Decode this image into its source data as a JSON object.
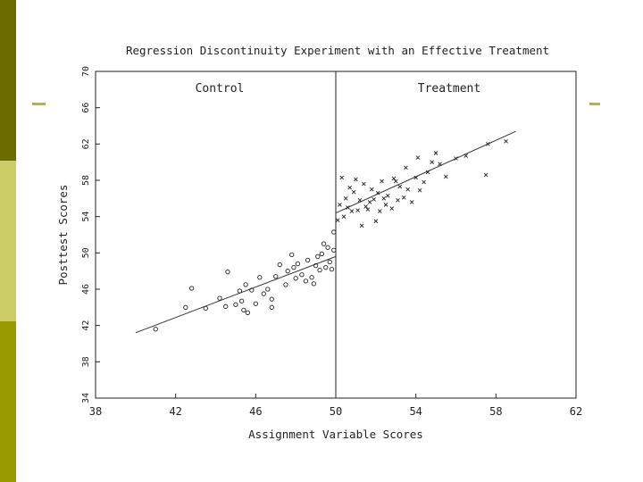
{
  "slide": {
    "strip_colors": [
      "#6b6b00",
      "#cccc66",
      "#999900"
    ],
    "accent_color": "#b5b53c"
  },
  "chart_data": {
    "type": "scatter",
    "title": "Regression Discontinuity Experiment with an Effective Treatment",
    "xlabel": "Assignment Variable Scores",
    "ylabel": "Posttest Scores",
    "xlim": [
      38,
      62
    ],
    "ylim": [
      34,
      70
    ],
    "xticks": [
      38,
      42,
      46,
      50,
      54,
      58,
      62
    ],
    "yticks": [
      34,
      38,
      42,
      46,
      50,
      54,
      58,
      62,
      66,
      70
    ],
    "cutoff": 50,
    "region_labels": {
      "control": "Control",
      "treatment": "Treatment"
    },
    "grid": false,
    "series": [
      {
        "name": "Control",
        "marker": "circle",
        "fit_line": [
          [
            40,
            41.2
          ],
          [
            50,
            49.6
          ]
        ],
        "points": [
          [
            41,
            41.6
          ],
          [
            42.5,
            44.0
          ],
          [
            42.8,
            46.1
          ],
          [
            43.5,
            43.9
          ],
          [
            44.2,
            45.0
          ],
          [
            44.5,
            44.1
          ],
          [
            44.6,
            47.9
          ],
          [
            45.0,
            44.3
          ],
          [
            45.2,
            45.8
          ],
          [
            45.4,
            43.7
          ],
          [
            45.5,
            46.5
          ],
          [
            45.6,
            43.4
          ],
          [
            45.8,
            45.9
          ],
          [
            46.0,
            44.4
          ],
          [
            46.2,
            47.3
          ],
          [
            46.4,
            45.5
          ],
          [
            46.6,
            46.0
          ],
          [
            46.8,
            44.9
          ],
          [
            47.0,
            47.4
          ],
          [
            47.2,
            48.7
          ],
          [
            47.5,
            46.5
          ],
          [
            47.6,
            48.0
          ],
          [
            47.8,
            49.8
          ],
          [
            48.0,
            47.2
          ],
          [
            48.1,
            48.8
          ],
          [
            48.3,
            47.6
          ],
          [
            48.5,
            46.9
          ],
          [
            48.6,
            49.2
          ],
          [
            48.8,
            47.3
          ],
          [
            49.0,
            48.6
          ],
          [
            49.1,
            49.6
          ],
          [
            49.2,
            48.1
          ],
          [
            49.3,
            49.9
          ],
          [
            49.4,
            51.0
          ],
          [
            49.5,
            48.4
          ],
          [
            49.6,
            50.6
          ],
          [
            49.7,
            49.0
          ],
          [
            49.8,
            48.2
          ],
          [
            49.9,
            50.3
          ],
          [
            49.9,
            52.3
          ],
          [
            46.8,
            44.0
          ],
          [
            45.3,
            44.7
          ],
          [
            47.9,
            48.4
          ],
          [
            48.9,
            46.6
          ]
        ]
      },
      {
        "name": "Treatment",
        "marker": "x",
        "fit_line": [
          [
            50,
            54.4
          ],
          [
            59,
            63.4
          ]
        ],
        "points": [
          [
            50.1,
            53.6
          ],
          [
            50.2,
            55.3
          ],
          [
            50.3,
            58.3
          ],
          [
            50.4,
            54.0
          ],
          [
            50.5,
            56.0
          ],
          [
            50.6,
            55.0
          ],
          [
            50.7,
            57.2
          ],
          [
            50.8,
            54.6
          ],
          [
            50.9,
            56.7
          ],
          [
            51.0,
            58.1
          ],
          [
            51.1,
            54.7
          ],
          [
            51.2,
            55.8
          ],
          [
            51.3,
            53.0
          ],
          [
            51.4,
            57.6
          ],
          [
            51.5,
            55.1
          ],
          [
            51.6,
            54.8
          ],
          [
            51.8,
            57.0
          ],
          [
            51.9,
            55.9
          ],
          [
            52.0,
            53.5
          ],
          [
            52.1,
            56.6
          ],
          [
            52.2,
            54.6
          ],
          [
            52.3,
            57.9
          ],
          [
            52.5,
            55.3
          ],
          [
            52.6,
            56.3
          ],
          [
            52.8,
            54.9
          ],
          [
            52.9,
            58.2
          ],
          [
            53.1,
            55.8
          ],
          [
            53.2,
            57.3
          ],
          [
            53.4,
            56.1
          ],
          [
            53.5,
            59.4
          ],
          [
            53.6,
            57.0
          ],
          [
            53.8,
            55.6
          ],
          [
            54.0,
            58.3
          ],
          [
            54.2,
            56.9
          ],
          [
            54.4,
            57.8
          ],
          [
            54.6,
            58.9
          ],
          [
            54.8,
            60.0
          ],
          [
            55.0,
            61.0
          ],
          [
            55.2,
            59.8
          ],
          [
            55.5,
            58.4
          ],
          [
            56.0,
            60.4
          ],
          [
            56.5,
            60.7
          ],
          [
            57.5,
            58.6
          ],
          [
            57.6,
            62.0
          ],
          [
            58.5,
            62.3
          ],
          [
            53.0,
            57.9
          ],
          [
            54.1,
            60.5
          ],
          [
            52.4,
            56.0
          ],
          [
            51.7,
            55.6
          ]
        ]
      }
    ]
  }
}
